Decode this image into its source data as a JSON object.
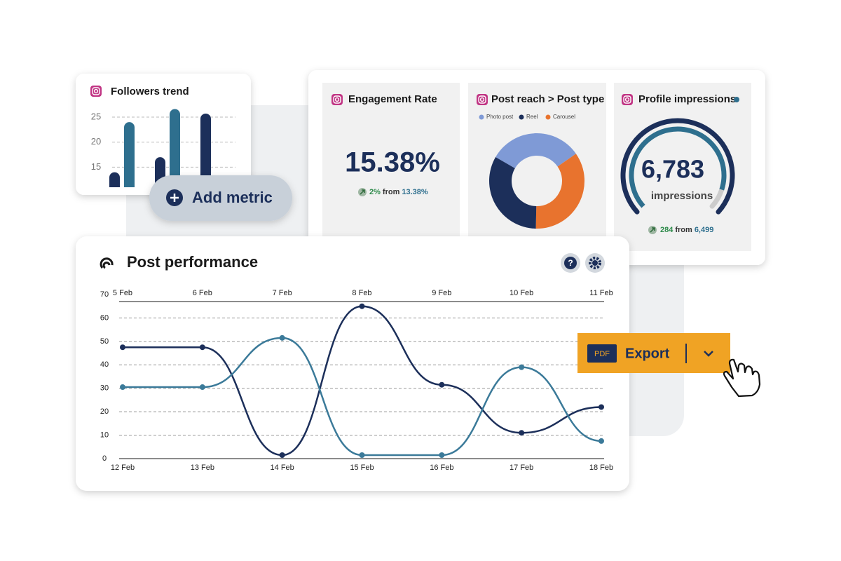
{
  "chart_data": [
    {
      "type": "bar",
      "title": "Followers trend",
      "categories": [
        null,
        null,
        null
      ],
      "series": [
        {
          "color": "#1c2f5a",
          "values": [
            14,
            17,
            25.7
          ]
        },
        {
          "color": "#2e6f8e",
          "values": [
            24,
            26.6,
            null
          ]
        }
      ],
      "ylim": [
        11,
        27
      ],
      "yticks": [
        15,
        20,
        25
      ],
      "grid": true
    },
    {
      "type": "donut",
      "title": "Post reach > Post type",
      "categories": [
        "Photo post",
        "Reel",
        "Carousel"
      ],
      "values": [
        32,
        33,
        35
      ],
      "colors": [
        "#7f9ad6",
        "#1c2f5a",
        "#e8732e"
      ]
    },
    {
      "type": "line",
      "title": "Post performance",
      "categories": [
        "12 Feb",
        "13 Feb",
        "14 Feb",
        "15 Feb",
        "16 Feb",
        "17 Feb",
        "18 Feb"
      ],
      "top_categories": [
        "5 Feb",
        "6 Feb",
        "7 Feb",
        "8 Feb",
        "9 Feb",
        "10 Feb",
        "11 Feb"
      ],
      "series": [
        {
          "color": "#1c2f5a",
          "values": [
            47.5,
            47.5,
            1.5,
            65,
            31.5,
            11,
            22
          ]
        },
        {
          "color": "#3b7a99",
          "values": [
            30.5,
            30.5,
            51.5,
            1.5,
            1.5,
            39,
            7.5
          ]
        }
      ],
      "ylim": [
        0,
        70
      ],
      "yticks": [
        0,
        10,
        20,
        30,
        40,
        50,
        60,
        70
      ],
      "grid": true
    }
  ],
  "engagement": {
    "title": "Engagement Rate",
    "value": "15.38%",
    "change": "2%",
    "from": "from",
    "previous": "13.38%"
  },
  "impressions": {
    "title": "Profile impressions",
    "value": "6,783",
    "unit": "impressions",
    "change": "284",
    "from": "from",
    "previous": "6,499"
  },
  "add_metric": "Add metric",
  "export": {
    "badge": "PDF",
    "label": "Export"
  },
  "help": "?"
}
